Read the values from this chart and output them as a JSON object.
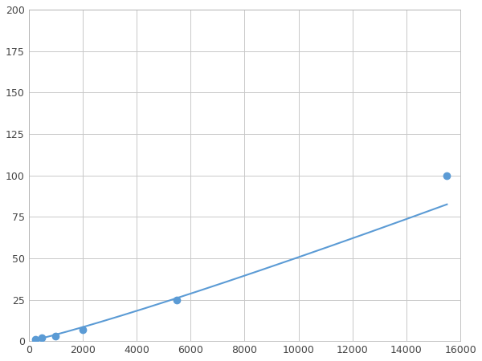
{
  "x": [
    250,
    500,
    1000,
    2000,
    5500,
    15500
  ],
  "y": [
    1,
    2,
    3,
    7,
    25,
    100
  ],
  "line_color": "#5B9BD5",
  "marker_color": "#5B9BD5",
  "marker_size": 6,
  "line_width": 1.5,
  "xlim": [
    0,
    16000
  ],
  "ylim": [
    0,
    200
  ],
  "xticks": [
    0,
    2000,
    4000,
    6000,
    8000,
    10000,
    12000,
    14000,
    16000
  ],
  "yticks": [
    0,
    25,
    50,
    75,
    100,
    125,
    150,
    175,
    200
  ],
  "grid_color": "#C8C8C8",
  "bg_color": "#FFFFFF",
  "fig_bg_color": "#FFFFFF"
}
